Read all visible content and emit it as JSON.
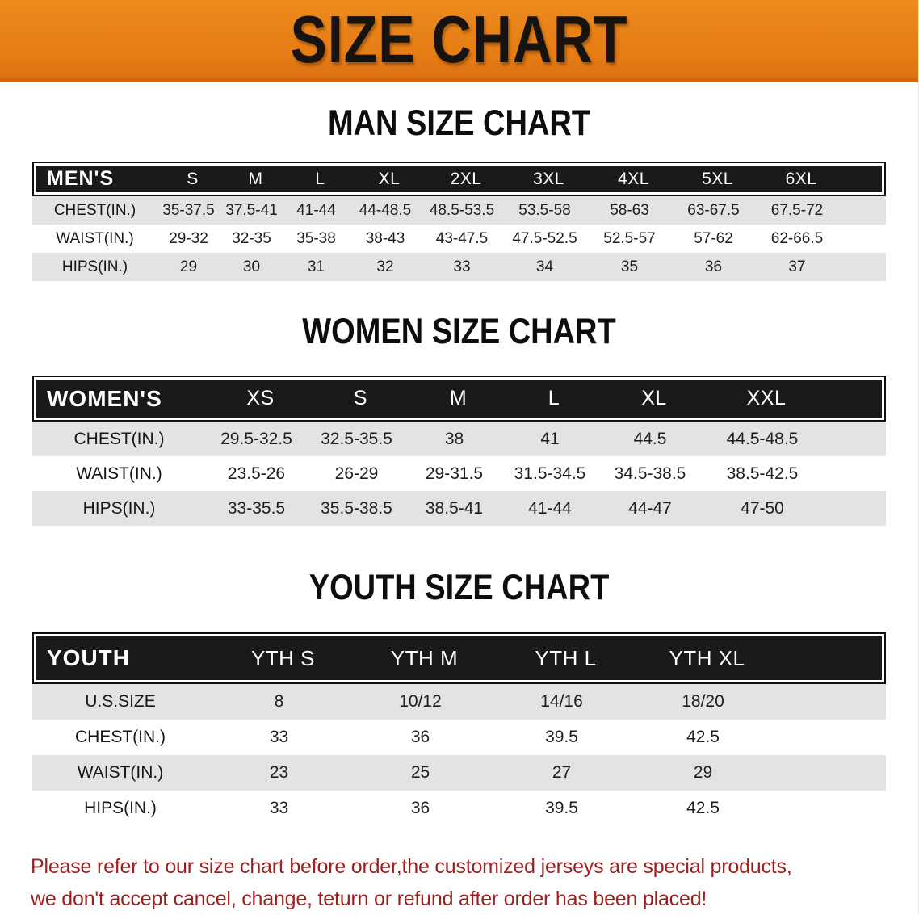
{
  "banner": {
    "title": "SIZE CHART",
    "bg_color": "#e67d15",
    "text_color": "#161311"
  },
  "sections": [
    {
      "heading": "MAN SIZE CHART",
      "header_label": "MEN'S",
      "columns": [
        "S",
        "M",
        "L",
        "XL",
        "2XL",
        "3XL",
        "4XL",
        "5XL",
        "6XL"
      ],
      "rows": [
        {
          "label": "CHEST(IN.)",
          "values": [
            "35-37.5",
            "37.5-41",
            "41-44",
            "44-48.5",
            "48.5-53.5",
            "53.5-58",
            "58-63",
            "63-67.5",
            "67.5-72"
          ]
        },
        {
          "label": "WAIST(IN.)",
          "values": [
            "29-32",
            "32-35",
            "35-38",
            "38-43",
            "43-47.5",
            "47.5-52.5",
            "52.5-57",
            "57-62",
            "62-66.5"
          ]
        },
        {
          "label": "HIPS(IN.)",
          "values": [
            "29",
            "30",
            "31",
            "32",
            "33",
            "34",
            "35",
            "36",
            "37"
          ]
        }
      ]
    },
    {
      "heading": "WOMEN SIZE CHART",
      "header_label": "WOMEN'S",
      "columns": [
        "XS",
        "S",
        "M",
        "L",
        "XL",
        "XXL"
      ],
      "rows": [
        {
          "label": "CHEST(IN.)",
          "values": [
            "29.5-32.5",
            "32.5-35.5",
            "38",
            "41",
            "44.5",
            "44.5-48.5"
          ]
        },
        {
          "label": "WAIST(IN.)",
          "values": [
            "23.5-26",
            "26-29",
            "29-31.5",
            "31.5-34.5",
            "34.5-38.5",
            "38.5-42.5"
          ]
        },
        {
          "label": "HIPS(IN.)",
          "values": [
            "33-35.5",
            "35.5-38.5",
            "38.5-41",
            "41-44",
            "44-47",
            "47-50"
          ]
        }
      ]
    },
    {
      "heading": "YOUTH SIZE CHART",
      "header_label": "YOUTH",
      "columns": [
        "YTH S",
        "YTH M",
        "YTH L",
        "YTH XL"
      ],
      "rows": [
        {
          "label": "U.S.SIZE",
          "values": [
            "8",
            "10/12",
            "14/16",
            "18/20"
          ]
        },
        {
          "label": "CHEST(IN.)",
          "values": [
            "33",
            "36",
            "39.5",
            "42.5"
          ]
        },
        {
          "label": "WAIST(IN.)",
          "values": [
            "23",
            "25",
            "27",
            "29"
          ]
        },
        {
          "label": "HIPS(IN.)",
          "values": [
            "33",
            "36",
            "39.5",
            "42.5"
          ]
        }
      ]
    }
  ],
  "footer": {
    "line1": "Please refer to our size chart before order,the customized jerseys are special products,",
    "line2": "we don't accept cancel, change, teturn or refund after order has been placed!",
    "text_color": "#9c1f1f"
  }
}
